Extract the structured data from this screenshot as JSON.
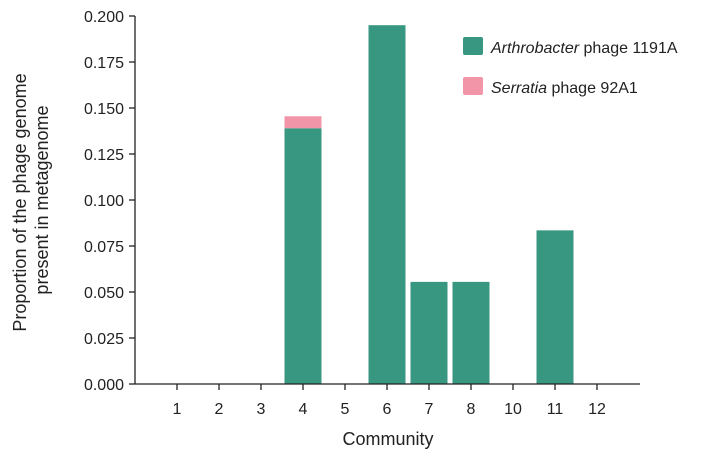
{
  "chart_data": {
    "type": "bar",
    "stacked": true,
    "categories": [
      "1",
      "2",
      "3",
      "4",
      "5",
      "6",
      "7",
      "8",
      "10",
      "11",
      "12"
    ],
    "series": [
      {
        "name_italic": "Arthrobacter",
        "name_rest": " phage 1191A",
        "color": "#379780",
        "values": [
          0,
          0,
          0,
          0.139,
          0,
          0.195,
          0.0555,
          0.0555,
          0,
          0.0835,
          0
        ]
      },
      {
        "name_italic": "Serratia",
        "name_rest": " phage 92A1",
        "color": "#f295a8",
        "values": [
          0,
          0,
          0,
          0.0065,
          0,
          0,
          0,
          0,
          0,
          0,
          0
        ]
      }
    ],
    "xlabel": "Community",
    "ylabel_line1": "Proportion of the phage genome",
    "ylabel_line2": "present in metagenome",
    "ylim": [
      0,
      0.2
    ],
    "yticks": [
      "0.000",
      "0.025",
      "0.050",
      "0.075",
      "0.100",
      "0.125",
      "0.150",
      "0.175",
      "0.200"
    ],
    "grid": false,
    "legend_position": "top-right"
  }
}
